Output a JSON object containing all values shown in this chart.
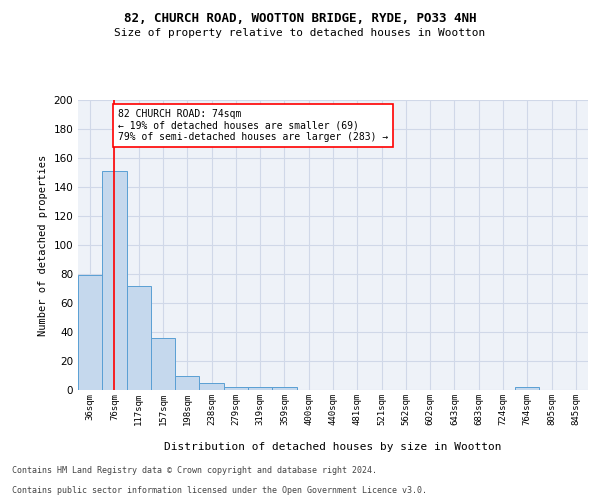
{
  "title1": "82, CHURCH ROAD, WOOTTON BRIDGE, RYDE, PO33 4NH",
  "title2": "Size of property relative to detached houses in Wootton",
  "xlabel": "Distribution of detached houses by size in Wootton",
  "ylabel": "Number of detached properties",
  "footer1": "Contains HM Land Registry data © Crown copyright and database right 2024.",
  "footer2": "Contains public sector information licensed under the Open Government Licence v3.0.",
  "annotation_title": "82 CHURCH ROAD: 74sqm",
  "annotation_line1": "← 19% of detached houses are smaller (69)",
  "annotation_line2": "79% of semi-detached houses are larger (283) →",
  "bar_labels": [
    "36sqm",
    "76sqm",
    "117sqm",
    "157sqm",
    "198sqm",
    "238sqm",
    "279sqm",
    "319sqm",
    "359sqm",
    "400sqm",
    "440sqm",
    "481sqm",
    "521sqm",
    "562sqm",
    "602sqm",
    "643sqm",
    "683sqm",
    "724sqm",
    "764sqm",
    "805sqm",
    "845sqm"
  ],
  "bar_values": [
    79,
    151,
    72,
    36,
    10,
    5,
    2,
    2,
    2,
    0,
    0,
    0,
    0,
    0,
    0,
    0,
    0,
    0,
    2,
    0,
    0
  ],
  "bar_color": "#c5d8ed",
  "bar_edge_color": "#5a9fd4",
  "grid_color": "#d0d8e8",
  "background_color": "#eef2f8",
  "red_line_x": 1.0,
  "ylim": [
    0,
    200
  ],
  "yticks": [
    0,
    20,
    40,
    60,
    80,
    100,
    120,
    140,
    160,
    180,
    200
  ]
}
